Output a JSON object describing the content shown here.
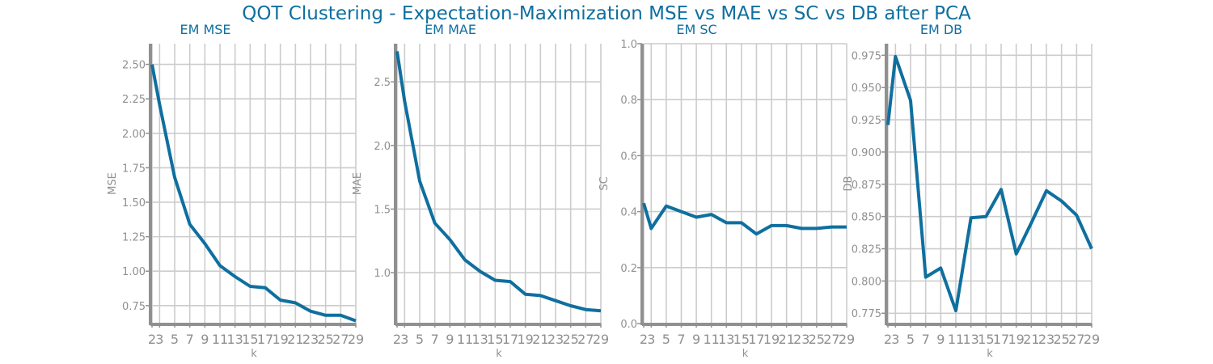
{
  "figure": {
    "title": "QOT Clustering - Expectation-Maximization MSE vs MAE vs SC vs DB after PCA"
  },
  "style": {
    "line_color": "#0f6f9f",
    "axis_color": "#909090",
    "grid_color": "#cccccc",
    "tick_color": "#909090",
    "title_color": "#0f6f9f"
  },
  "chart_data": [
    {
      "type": "line",
      "title": "EM MSE",
      "xlabel": "k",
      "ylabel": "MSE",
      "x": [
        2,
        3,
        5,
        7,
        9,
        11,
        13,
        15,
        17,
        19,
        21,
        23,
        25,
        27,
        29
      ],
      "xticks": [
        "2",
        "3",
        "5",
        "7",
        "9",
        "11",
        "13",
        "15",
        "17",
        "19",
        "21",
        "23",
        "25",
        "27",
        "29"
      ],
      "xlim": [
        2,
        29
      ],
      "yticks": [
        "0.75",
        "1.00",
        "1.25",
        "1.50",
        "1.75",
        "2.00",
        "2.25",
        "2.50"
      ],
      "ylim": [
        0.62,
        2.65
      ],
      "grid": true,
      "series": [
        {
          "values": [
            2.5,
            2.21,
            1.68,
            1.34,
            1.2,
            1.04,
            0.96,
            0.89,
            0.88,
            0.79,
            0.77,
            0.71,
            0.68,
            0.68,
            0.64
          ]
        }
      ]
    },
    {
      "type": "line",
      "title": "EM MAE",
      "xlabel": "k",
      "ylabel": "MAE",
      "x": [
        2,
        3,
        5,
        7,
        9,
        11,
        13,
        15,
        17,
        19,
        21,
        23,
        25,
        27,
        29
      ],
      "xticks": [
        "2",
        "3",
        "5",
        "7",
        "9",
        "11",
        "13",
        "15",
        "17",
        "19",
        "21",
        "23",
        "25",
        "27",
        "29"
      ],
      "xlim": [
        2,
        29
      ],
      "yticks": [
        "1.0",
        "1.5",
        "2.0",
        "2.5"
      ],
      "ylim": [
        0.6,
        2.8
      ],
      "grid": true,
      "series": [
        {
          "values": [
            2.74,
            2.35,
            1.72,
            1.39,
            1.26,
            1.1,
            1.01,
            0.94,
            0.93,
            0.83,
            0.82,
            0.78,
            0.74,
            0.71,
            0.7
          ]
        }
      ]
    },
    {
      "type": "line",
      "title": "EM SC",
      "xlabel": "k",
      "ylabel": "SC",
      "x": [
        2,
        3,
        5,
        7,
        9,
        11,
        13,
        15,
        17,
        19,
        21,
        23,
        25,
        27,
        29
      ],
      "xticks": [
        "2",
        "3",
        "5",
        "7",
        "9",
        "11",
        "13",
        "15",
        "17",
        "19",
        "21",
        "23",
        "25",
        "27",
        "29"
      ],
      "xlim": [
        2,
        29
      ],
      "yticks": [
        "0.0",
        "0.2",
        "0.4",
        "0.6",
        "0.8",
        "1.0"
      ],
      "ylim": [
        0.0,
        1.0
      ],
      "grid": true,
      "series": [
        {
          "values": [
            0.43,
            0.34,
            0.42,
            0.4,
            0.38,
            0.39,
            0.36,
            0.36,
            0.32,
            0.35,
            0.35,
            0.34,
            0.34,
            0.345,
            0.345
          ]
        }
      ]
    },
    {
      "type": "line",
      "title": "EM DB",
      "xlabel": "k",
      "ylabel": "DB",
      "x": [
        2,
        3,
        5,
        7,
        9,
        11,
        13,
        15,
        17,
        19,
        21,
        23,
        25,
        27,
        29
      ],
      "xticks": [
        "2",
        "3",
        "5",
        "7",
        "9",
        "11",
        "13",
        "15",
        "17",
        "19",
        "21",
        "23",
        "25",
        "27",
        "29"
      ],
      "xlim": [
        2,
        29
      ],
      "yticks": [
        "0.775",
        "0.800",
        "0.825",
        "0.850",
        "0.875",
        "0.900",
        "0.925",
        "0.950",
        "0.975"
      ],
      "ylim": [
        0.767,
        0.984
      ],
      "grid": true,
      "series": [
        {
          "values": [
            0.921,
            0.974,
            0.94,
            0.803,
            0.81,
            0.777,
            0.849,
            0.85,
            0.871,
            0.821,
            0.845,
            0.87,
            0.862,
            0.851,
            0.825
          ]
        }
      ]
    }
  ]
}
